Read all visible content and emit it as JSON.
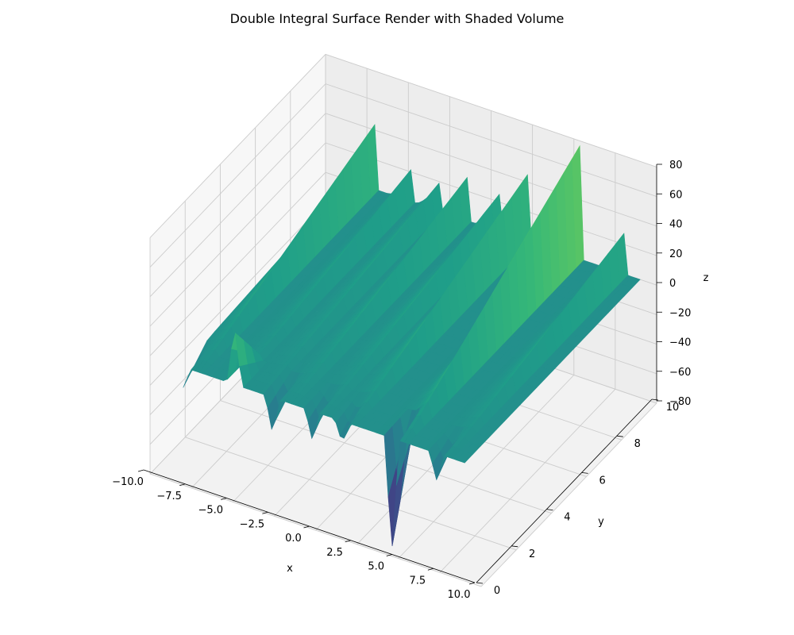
{
  "chart_data": {
    "type": "surface",
    "title": "Double Integral Surface Render with Shaded Volume",
    "xlabel": "x",
    "ylabel": "y",
    "zlabel": "z",
    "xlim": [
      -10,
      10
    ],
    "ylim": [
      0,
      10
    ],
    "zlim": [
      -80,
      80
    ],
    "x_ticks": [
      "−10.0",
      "−7.5",
      "−5.0",
      "−2.5",
      "0.0",
      "2.5",
      "5.0",
      "7.5",
      "10.0"
    ],
    "x_tick_values": [
      -10,
      -7.5,
      -5,
      -2.5,
      0,
      2.5,
      5,
      7.5,
      10
    ],
    "y_ticks": [
      "0",
      "2",
      "4",
      "6",
      "8",
      "10"
    ],
    "y_tick_values": [
      0,
      2,
      4,
      6,
      8,
      10
    ],
    "z_ticks": [
      "−80",
      "−60",
      "−40",
      "−20",
      "0",
      "20",
      "40",
      "60",
      "80"
    ],
    "z_tick_values": [
      -80,
      -60,
      -40,
      -20,
      0,
      20,
      40,
      60,
      80
    ],
    "colormap": "viridis",
    "grid": true,
    "surface_domain": {
      "x": [
        -8,
        9
      ],
      "y": [
        0,
        10
      ]
    },
    "ridges": [
      {
        "x": -7.0,
        "peak_z": 45
      },
      {
        "x": -4.6,
        "peak_z": 28
      },
      {
        "x": -3.0,
        "peak_z": 22
      },
      {
        "x": -1.3,
        "peak_z": 34
      },
      {
        "x": 0.6,
        "peak_z": 28
      },
      {
        "x": 2.2,
        "peak_z": 45
      },
      {
        "x": 5.4,
        "peak_z": 80
      },
      {
        "x": 8.2,
        "peak_z": 33
      }
    ],
    "front_spikes": [
      {
        "x": -8.0,
        "z": -14
      },
      {
        "x": -4.9,
        "z": 40
      },
      {
        "x": -2.6,
        "z": -25
      },
      {
        "x": -0.2,
        "z": -20
      },
      {
        "x": 1.6,
        "z": -15
      },
      {
        "x": 4.6,
        "z": -78
      },
      {
        "x": 7.3,
        "z": -18
      }
    ]
  }
}
